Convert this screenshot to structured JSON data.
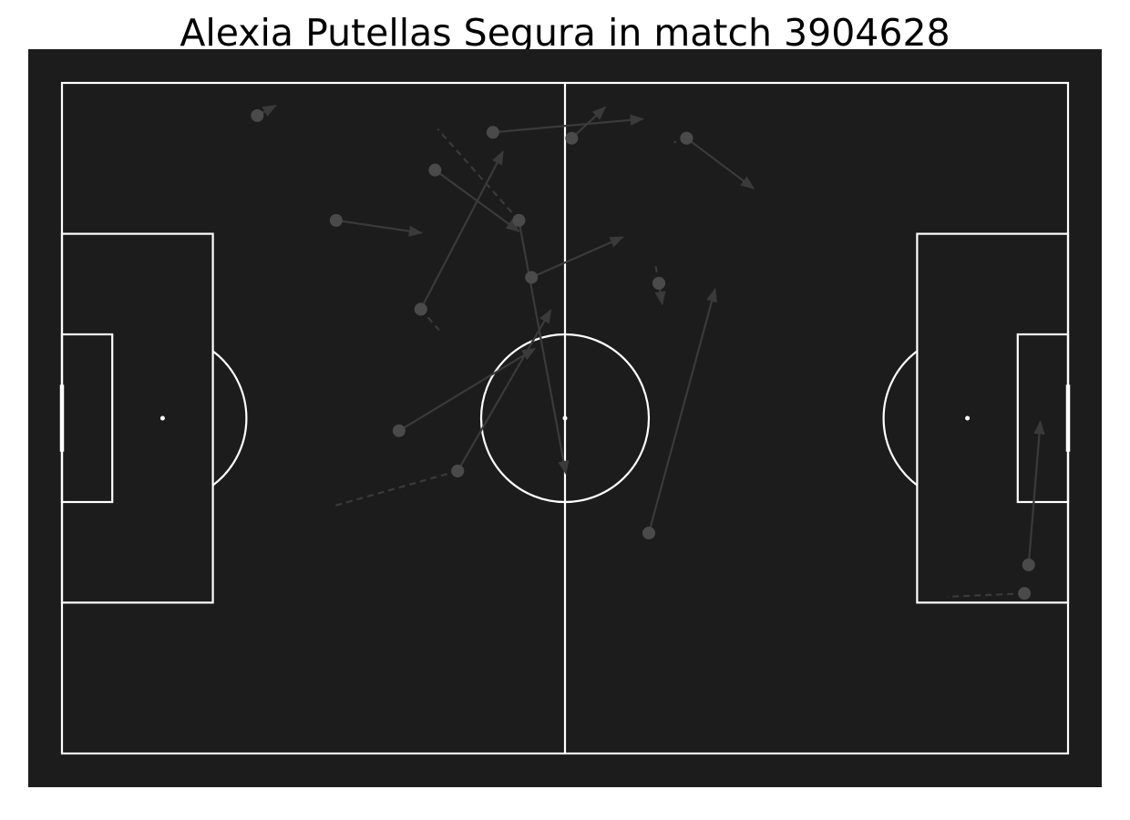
{
  "title": "Alexia Putellas Segura in match 3904628",
  "colors": {
    "pitch": "#1c1c1c",
    "lines": "#ffffff",
    "event": "#3a3a3a",
    "marker": "#4a4a4a"
  },
  "chart_data": {
    "type": "scatter",
    "title": "Alexia Putellas Segura in match 3904628",
    "pitch": {
      "type": "statsbomb",
      "length": 120,
      "width": 80
    },
    "xlim": [
      0,
      120
    ],
    "ylim": [
      0,
      80
    ],
    "grid": false,
    "line_styles": {
      "solid": "pass",
      "dashed": "carry"
    },
    "events": [
      {
        "style": "solid",
        "x": 23.3,
        "y": 3.9,
        "end_x": 25.5,
        "end_y": 2.7
      },
      {
        "style": "solid",
        "x": 51.4,
        "y": 5.9,
        "end_x": 69.3,
        "end_y": 4.3
      },
      {
        "style": "solid",
        "x": 60.8,
        "y": 6.6,
        "end_x": 64.8,
        "end_y": 2.9
      },
      {
        "style": "dashed",
        "x": 74.5,
        "y": 6.6,
        "end_x": 73.0,
        "end_y": 7.1
      },
      {
        "style": "solid",
        "x": 74.5,
        "y": 6.6,
        "end_x": 82.5,
        "end_y": 12.6
      },
      {
        "style": "solid",
        "x": 44.5,
        "y": 10.4,
        "end_x": 54.5,
        "end_y": 17.7
      },
      {
        "style": "dashed",
        "x": 54.5,
        "y": 16.4,
        "end_x": 44.8,
        "end_y": 5.5
      },
      {
        "style": "solid",
        "x": 54.5,
        "y": 16.4,
        "end_x": 60.1,
        "end_y": 46.6
      },
      {
        "style": "solid",
        "x": 32.7,
        "y": 16.4,
        "end_x": 42.9,
        "end_y": 17.9
      },
      {
        "style": "solid",
        "x": 56.0,
        "y": 23.2,
        "end_x": 66.9,
        "end_y": 18.4
      },
      {
        "style": "dashed",
        "x": 71.2,
        "y": 23.9,
        "end_x": 70.8,
        "end_y": 21.8
      },
      {
        "style": "solid",
        "x": 71.2,
        "y": 23.9,
        "end_x": 71.6,
        "end_y": 26.4
      },
      {
        "style": "dashed",
        "x": 42.8,
        "y": 27.0,
        "end_x": 45.0,
        "end_y": 29.5
      },
      {
        "style": "solid",
        "x": 42.8,
        "y": 27.0,
        "end_x": 52.6,
        "end_y": 8.2
      },
      {
        "style": "solid",
        "x": 40.2,
        "y": 41.5,
        "end_x": 56.4,
        "end_y": 31.7
      },
      {
        "style": "dashed",
        "x": 47.2,
        "y": 46.3,
        "end_x": 32.3,
        "end_y": 50.5
      },
      {
        "style": "solid",
        "x": 47.2,
        "y": 46.3,
        "end_x": 58.3,
        "end_y": 27.1
      },
      {
        "style": "solid",
        "x": 70.0,
        "y": 53.7,
        "end_x": 77.9,
        "end_y": 24.6
      },
      {
        "style": "solid",
        "x": 115.3,
        "y": 57.5,
        "end_x": 116.7,
        "end_y": 40.4
      },
      {
        "style": "dashed",
        "x": 114.8,
        "y": 60.9,
        "end_x": 105.6,
        "end_y": 61.3
      }
    ]
  }
}
